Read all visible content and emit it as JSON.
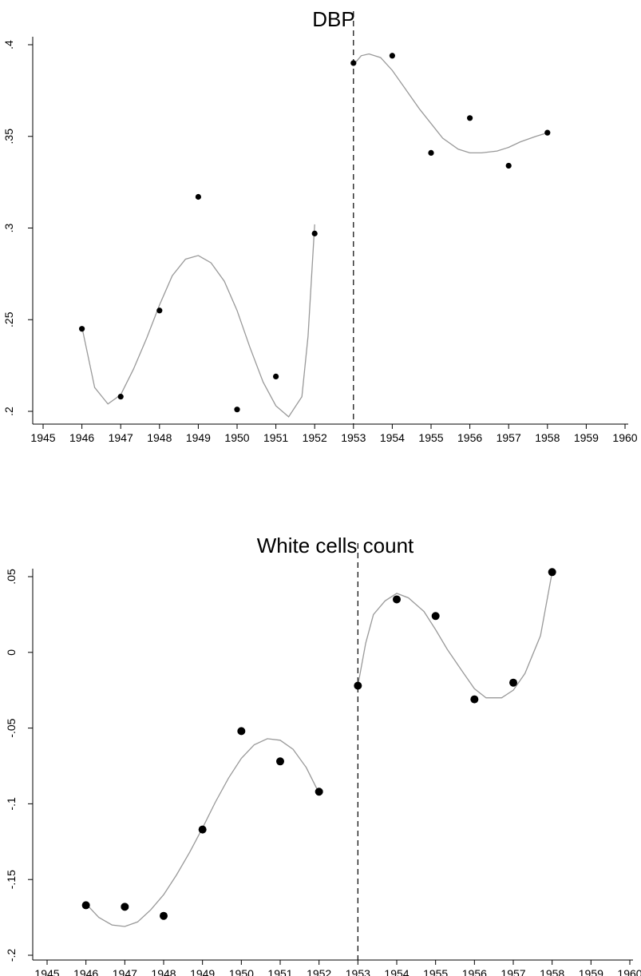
{
  "chart_data": [
    {
      "type": "scatter",
      "title": "DBP",
      "xlabel": "",
      "ylabel": "",
      "xlim": [
        1945,
        1960
      ],
      "ylim": [
        0.2,
        0.4
      ],
      "xticks": [
        "1945",
        "1946",
        "1947",
        "1948",
        "1949",
        "1950",
        "1951",
        "1952",
        "1953",
        "1954",
        "1955",
        "1956",
        "1957",
        "1958",
        "1959",
        "1960"
      ],
      "yticks": [
        ".2",
        ".25",
        ".3",
        ".35",
        ".4"
      ],
      "cutoff_year": 1953,
      "grid": false,
      "colors": {
        "points": "#000000",
        "fit": "#999999",
        "cutoff": "#000000"
      },
      "points": {
        "x": [
          1946,
          1947,
          1948,
          1949,
          1950,
          1951,
          1952,
          1953,
          1954,
          1955,
          1956,
          1957,
          1958
        ],
        "y": [
          0.245,
          0.208,
          0.255,
          0.317,
          0.201,
          0.219,
          0.297,
          0.39,
          0.394,
          0.341,
          0.36,
          0.334,
          0.352
        ]
      },
      "fit_left": {
        "x": [
          1946,
          1946.33,
          1946.67,
          1947,
          1947.33,
          1947.67,
          1948,
          1948.33,
          1948.67,
          1949,
          1949.33,
          1949.67,
          1950,
          1950.33,
          1950.67,
          1951,
          1951.33,
          1951.67,
          1952
        ],
        "y": [
          0.246,
          0.213,
          0.204,
          0.209,
          0.223,
          0.24,
          0.258,
          0.274,
          0.283,
          0.285,
          0.281,
          0.271,
          0.255,
          0.235,
          0.216,
          0.203,
          0.197,
          0.208,
          0.241
        ]
      },
      "fit_left_end": {
        "x": [
          1951.67,
          1951.83,
          1952
        ],
        "y": [
          0.208,
          0.241,
          0.302
        ]
      },
      "fit_right": {
        "x": [
          1953,
          1953.2,
          1953.4,
          1953.7,
          1954,
          1954.3,
          1954.7,
          1955,
          1955.3,
          1955.7,
          1956,
          1956.3,
          1956.7,
          1957,
          1957.3,
          1957.7,
          1958
        ],
        "y": [
          0.389,
          0.394,
          0.395,
          0.393,
          0.386,
          0.377,
          0.365,
          0.357,
          0.349,
          0.343,
          0.341,
          0.341,
          0.342,
          0.344,
          0.347,
          0.35,
          0.352
        ]
      }
    },
    {
      "type": "scatter",
      "title": "White cells count",
      "xlabel": "",
      "ylabel": "",
      "xlim": [
        1945,
        1960
      ],
      "ylim": [
        -0.2,
        0.05
      ],
      "xticks": [
        "1945",
        "1946",
        "1947",
        "1948",
        "1949",
        "1950",
        "1951",
        "1952",
        "1953",
        "1954",
        "1955",
        "1956",
        "1957",
        "1958",
        "1959",
        "1960"
      ],
      "yticks": [
        "-.2",
        "-.15",
        "-.1",
        "-.05",
        "0",
        ".05"
      ],
      "cutoff_year": 1953,
      "grid": false,
      "colors": {
        "points": "#000000",
        "fit": "#999999",
        "cutoff": "#000000"
      },
      "points": {
        "x": [
          1946,
          1947,
          1948,
          1949,
          1950,
          1951,
          1952,
          1953,
          1954,
          1955,
          1956,
          1957,
          1958
        ],
        "y": [
          -0.167,
          -0.168,
          -0.174,
          -0.117,
          -0.052,
          -0.072,
          -0.092,
          -0.022,
          0.035,
          0.024,
          -0.031,
          -0.02,
          0.053
        ]
      },
      "fit_left": {
        "x": [
          1946,
          1946.33,
          1946.67,
          1947,
          1947.33,
          1947.67,
          1948,
          1948.33,
          1948.67,
          1949,
          1949.33,
          1949.67,
          1950,
          1950.33,
          1950.67,
          1951,
          1951.33,
          1951.67,
          1952
        ],
        "y": [
          -0.166,
          -0.175,
          -0.18,
          -0.181,
          -0.178,
          -0.17,
          -0.16,
          -0.147,
          -0.132,
          -0.116,
          -0.099,
          -0.083,
          -0.07,
          -0.061,
          -0.057,
          -0.058,
          -0.064,
          -0.076,
          -0.093
        ]
      },
      "fit_right": {
        "x": [
          1953,
          1953.2,
          1953.4,
          1953.7,
          1954,
          1954.3,
          1954.7,
          1955,
          1955.3,
          1955.7,
          1956,
          1956.3,
          1956.7,
          1957,
          1957.3,
          1957.7,
          1958
        ],
        "y": [
          -0.022,
          0.006,
          0.025,
          0.034,
          0.039,
          0.036,
          0.027,
          0.015,
          0.002,
          -0.013,
          -0.024,
          -0.03,
          -0.03,
          -0.025,
          -0.014,
          0.011,
          0.053
        ]
      }
    }
  ]
}
